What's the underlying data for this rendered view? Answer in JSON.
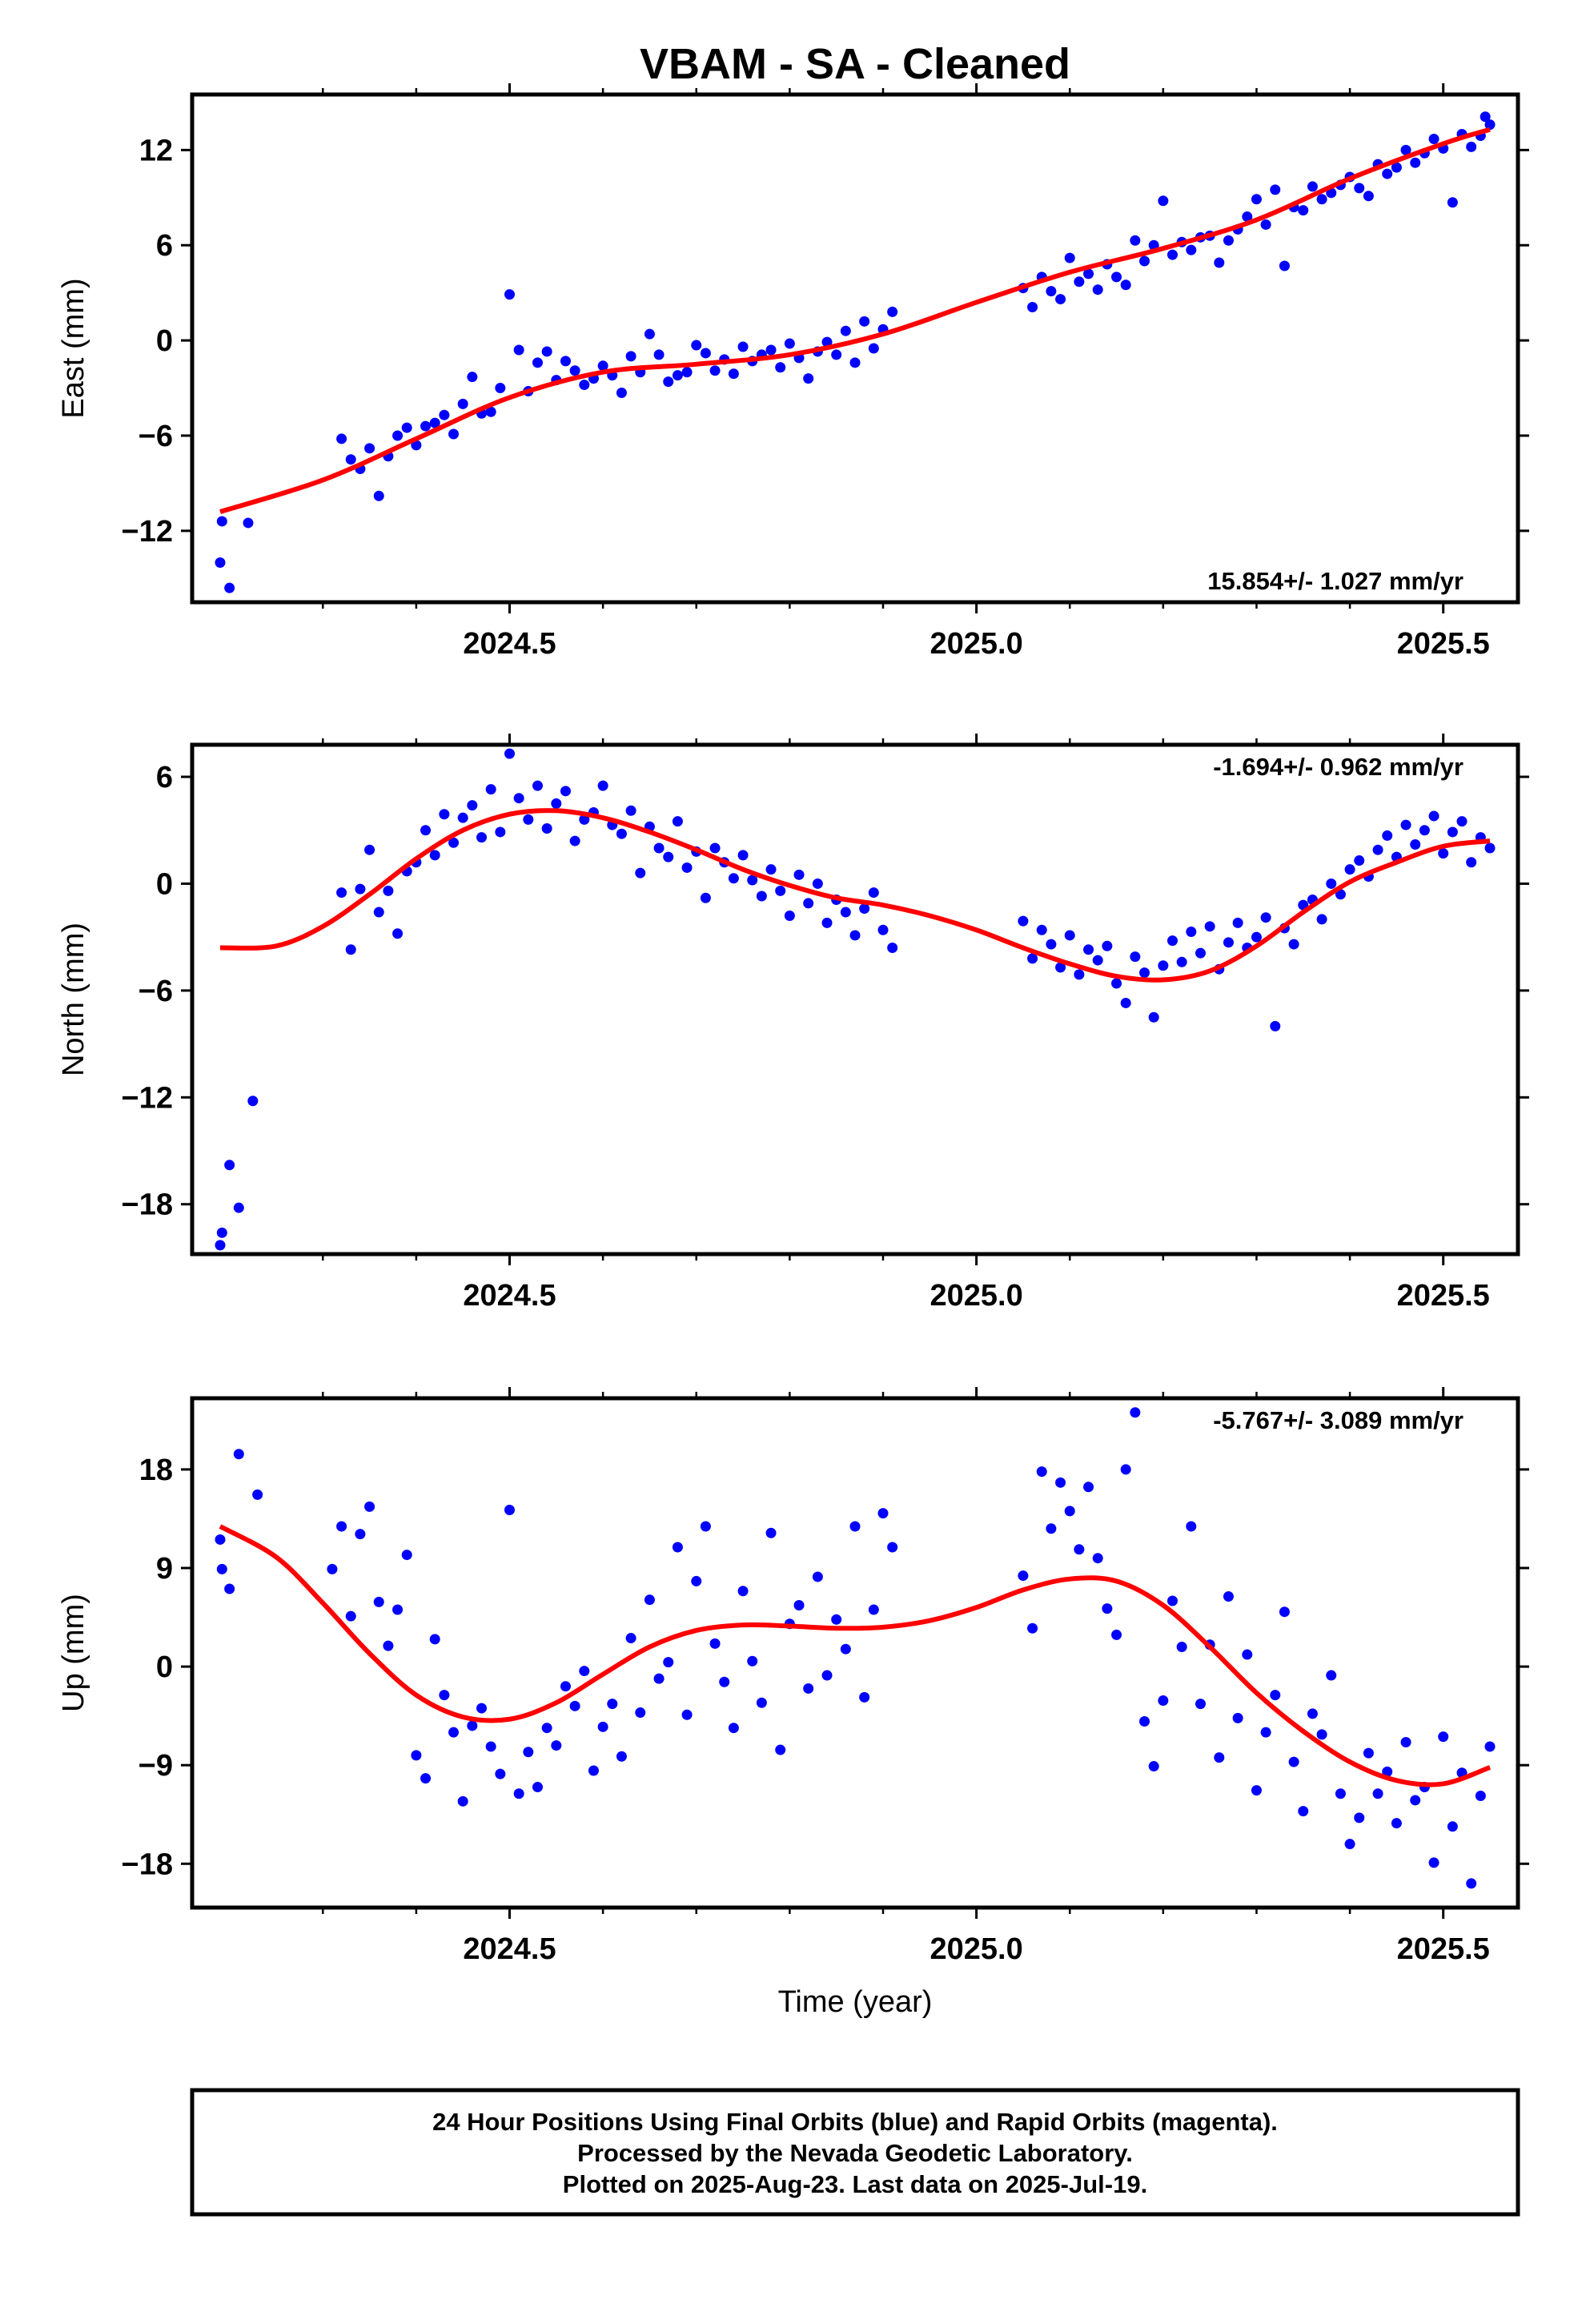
{
  "title": "VBAM  - SA - Cleaned",
  "x_axis_label": "Time (year)",
  "footer": {
    "line1": "24 Hour Positions Using Final Orbits (blue) and Rapid Orbits (magenta).",
    "line2": "Processed by the Nevada Geodetic Laboratory.",
    "line3": "Plotted on 2025-Aug-23. Last data on 2025-Jul-19."
  },
  "colors": {
    "data_points": "#0000ff",
    "model_fit": "#ff0000",
    "frame": "#000000"
  },
  "chart_data": [
    {
      "type": "scatter",
      "component": "east",
      "ylabel": "East (mm)",
      "rate_label": "15.854+/- 1.027 mm/yr",
      "rate_position": "bottom-right",
      "xlim": [
        2024.16,
        2025.58
      ],
      "ylim": [
        -16.5,
        15.5
      ],
      "xticks": [
        2024.5,
        2025.0,
        2025.5
      ],
      "xticklabels": [
        "2024.5",
        "2025.0",
        "2025.5"
      ],
      "yticks": [
        -12,
        -6,
        0,
        6,
        12
      ],
      "yticklabels": [
        "−12",
        "−6",
        "0",
        "6",
        "12"
      ],
      "grid": false,
      "fit_x": [
        2024.19,
        2024.3,
        2024.4,
        2024.5,
        2024.6,
        2024.7,
        2024.8,
        2024.9,
        2025.0,
        2025.1,
        2025.2,
        2025.3,
        2025.4,
        2025.5,
        2025.55
      ],
      "fit_y": [
        -10.8,
        -8.8,
        -6.2,
        -3.6,
        -2.0,
        -1.5,
        -0.9,
        0.4,
        2.4,
        4.3,
        5.8,
        7.6,
        10.2,
        12.4,
        13.3
      ],
      "points_x": [
        2024.19,
        2024.192,
        2024.2,
        2024.22,
        2024.32,
        2024.33,
        2024.34,
        2024.35,
        2024.36,
        2024.37,
        2024.38,
        2024.39,
        2024.4,
        2024.41,
        2024.42,
        2024.43,
        2024.44,
        2024.45,
        2024.46,
        2024.47,
        2024.48,
        2024.49,
        2024.5,
        2024.51,
        2024.52,
        2024.53,
        2024.54,
        2024.55,
        2024.56,
        2024.57,
        2024.58,
        2024.59,
        2024.6,
        2024.61,
        2024.62,
        2024.63,
        2024.64,
        2024.65,
        2024.66,
        2024.67,
        2024.68,
        2024.69,
        2024.7,
        2024.71,
        2024.72,
        2024.73,
        2024.74,
        2024.75,
        2024.76,
        2024.77,
        2024.78,
        2024.79,
        2024.8,
        2024.81,
        2024.82,
        2024.83,
        2024.84,
        2024.85,
        2024.86,
        2024.87,
        2024.88,
        2024.89,
        2024.9,
        2024.91,
        2025.05,
        2025.06,
        2025.07,
        2025.08,
        2025.09,
        2025.1,
        2025.11,
        2025.12,
        2025.13,
        2025.14,
        2025.15,
        2025.16,
        2025.17,
        2025.18,
        2025.19,
        2025.2,
        2025.21,
        2025.22,
        2025.23,
        2025.24,
        2025.25,
        2025.26,
        2025.27,
        2025.28,
        2025.29,
        2025.3,
        2025.31,
        2025.32,
        2025.33,
        2025.34,
        2025.35,
        2025.36,
        2025.37,
        2025.38,
        2025.39,
        2025.4,
        2025.41,
        2025.42,
        2025.43,
        2025.44,
        2025.45,
        2025.46,
        2025.47,
        2025.48,
        2025.49,
        2025.5,
        2025.51,
        2025.52,
        2025.53,
        2025.54,
        2025.545,
        2025.55
      ],
      "points_y": [
        -14.0,
        -11.4,
        -15.6,
        -11.5,
        -6.2,
        -7.5,
        -8.1,
        -6.8,
        -9.8,
        -7.3,
        -6.0,
        -5.5,
        -6.6,
        -5.4,
        -5.2,
        -4.7,
        -5.9,
        -4.0,
        -2.3,
        -4.6,
        -4.5,
        -3.0,
        2.9,
        -0.6,
        -3.2,
        -1.4,
        -0.7,
        -2.5,
        -1.3,
        -1.9,
        -2.8,
        -2.4,
        -1.6,
        -2.2,
        -3.3,
        -1.0,
        -2.0,
        0.4,
        -0.9,
        -2.6,
        -2.2,
        -2.0,
        -0.3,
        -0.8,
        -1.9,
        -1.2,
        -2.1,
        -0.4,
        -1.3,
        -0.9,
        -0.6,
        -1.7,
        -0.2,
        -1.1,
        -2.4,
        -0.7,
        -0.1,
        -0.9,
        0.6,
        -1.4,
        1.2,
        -0.5,
        0.7,
        1.8,
        3.3,
        2.1,
        4.0,
        3.1,
        2.6,
        5.2,
        3.7,
        4.2,
        3.2,
        4.8,
        4.0,
        3.5,
        6.3,
        5.0,
        6.0,
        8.8,
        5.4,
        6.2,
        5.7,
        6.5,
        6.6,
        4.9,
        6.3,
        7.0,
        7.8,
        8.9,
        7.3,
        9.5,
        4.7,
        8.4,
        8.2,
        9.7,
        8.9,
        9.3,
        9.8,
        10.3,
        9.6,
        9.1,
        11.1,
        10.5,
        10.9,
        12.0,
        11.2,
        11.8,
        12.7,
        12.1,
        8.7,
        13.0,
        12.2,
        12.9,
        14.1,
        13.6
      ]
    },
    {
      "type": "scatter",
      "component": "north",
      "ylabel": "North (mm)",
      "rate_label": "-1.694+/- 0.962 mm/yr",
      "rate_position": "top-right",
      "xlim": [
        2024.16,
        2025.58
      ],
      "ylim": [
        -20.8,
        7.8
      ],
      "xticks": [
        2024.5,
        2025.0,
        2025.5
      ],
      "xticklabels": [
        "2024.5",
        "2025.0",
        "2025.5"
      ],
      "yticks": [
        -18,
        -12,
        -6,
        0,
        6
      ],
      "yticklabels": [
        "−18",
        "−12",
        "−6",
        "0",
        "6"
      ],
      "grid": false,
      "fit_x": [
        2024.19,
        2024.25,
        2024.3,
        2024.35,
        2024.4,
        2024.45,
        2024.5,
        2024.55,
        2024.6,
        2024.65,
        2024.7,
        2024.75,
        2024.8,
        2024.85,
        2024.9,
        2024.95,
        2025.0,
        2025.05,
        2025.1,
        2025.15,
        2025.2,
        2025.25,
        2025.3,
        2025.35,
        2025.4,
        2025.45,
        2025.5,
        2025.55
      ],
      "fit_y": [
        -3.6,
        -3.5,
        -2.4,
        -0.6,
        1.4,
        3.0,
        3.9,
        4.1,
        3.7,
        2.9,
        1.9,
        0.8,
        -0.1,
        -0.8,
        -1.2,
        -1.8,
        -2.6,
        -3.6,
        -4.5,
        -5.2,
        -5.4,
        -4.9,
        -3.5,
        -1.6,
        0.1,
        1.2,
        2.1,
        2.4
      ],
      "points_x": [
        2024.19,
        2024.192,
        2024.2,
        2024.21,
        2024.225,
        2024.32,
        2024.33,
        2024.34,
        2024.35,
        2024.36,
        2024.37,
        2024.38,
        2024.39,
        2024.4,
        2024.41,
        2024.42,
        2024.43,
        2024.44,
        2024.45,
        2024.46,
        2024.47,
        2024.48,
        2024.49,
        2024.5,
        2024.51,
        2024.52,
        2024.53,
        2024.54,
        2024.55,
        2024.56,
        2024.57,
        2024.58,
        2024.59,
        2024.6,
        2024.61,
        2024.62,
        2024.63,
        2024.64,
        2024.65,
        2024.66,
        2024.67,
        2024.68,
        2024.69,
        2024.7,
        2024.71,
        2024.72,
        2024.73,
        2024.74,
        2024.75,
        2024.76,
        2024.77,
        2024.78,
        2024.79,
        2024.8,
        2024.81,
        2024.82,
        2024.83,
        2024.84,
        2024.85,
        2024.86,
        2024.87,
        2024.88,
        2024.89,
        2024.9,
        2024.91,
        2025.05,
        2025.06,
        2025.07,
        2025.08,
        2025.09,
        2025.1,
        2025.11,
        2025.12,
        2025.13,
        2025.14,
        2025.15,
        2025.16,
        2025.17,
        2025.18,
        2025.19,
        2025.2,
        2025.21,
        2025.22,
        2025.23,
        2025.24,
        2025.25,
        2025.26,
        2025.27,
        2025.28,
        2025.29,
        2025.3,
        2025.31,
        2025.32,
        2025.33,
        2025.34,
        2025.35,
        2025.36,
        2025.37,
        2025.38,
        2025.39,
        2025.4,
        2025.41,
        2025.42,
        2025.43,
        2025.44,
        2025.45,
        2025.46,
        2025.47,
        2025.48,
        2025.49,
        2025.5,
        2025.51,
        2025.52,
        2025.53,
        2025.54,
        2025.55
      ],
      "points_y": [
        -20.3,
        -19.6,
        -15.8,
        -18.2,
        -12.2,
        -0.5,
        -3.7,
        -0.3,
        1.9,
        -1.6,
        -0.4,
        -2.8,
        0.7,
        1.2,
        3.0,
        1.6,
        3.9,
        2.3,
        3.7,
        4.4,
        2.6,
        5.3,
        2.9,
        7.3,
        4.8,
        3.6,
        5.5,
        3.1,
        4.5,
        5.2,
        2.4,
        3.6,
        4.0,
        5.5,
        3.3,
        2.8,
        4.1,
        0.6,
        3.2,
        2.0,
        1.5,
        3.5,
        0.9,
        1.8,
        -0.8,
        2.0,
        1.2,
        0.3,
        1.6,
        0.2,
        -0.7,
        0.8,
        -0.4,
        -1.8,
        0.5,
        -1.1,
        0.0,
        -2.2,
        -0.9,
        -1.6,
        -2.9,
        -1.4,
        -0.5,
        -2.6,
        -3.6,
        -2.1,
        -4.2,
        -2.6,
        -3.4,
        -4.7,
        -2.9,
        -5.1,
        -3.7,
        -4.3,
        -3.5,
        -5.6,
        -6.7,
        -4.1,
        -5.0,
        -7.5,
        -4.6,
        -3.2,
        -4.4,
        -2.7,
        -3.9,
        -2.4,
        -4.8,
        -3.3,
        -2.2,
        -3.6,
        -3.0,
        -1.9,
        -8.0,
        -2.5,
        -3.4,
        -1.2,
        -0.9,
        -2.0,
        0.0,
        -0.6,
        0.8,
        1.3,
        0.4,
        1.9,
        2.7,
        1.5,
        3.3,
        2.2,
        3.0,
        3.8,
        1.7,
        2.9,
        3.5,
        1.2,
        2.6,
        2.0
      ]
    },
    {
      "type": "scatter",
      "component": "up",
      "ylabel": "Up (mm)",
      "rate_label": "-5.767+/- 3.089 mm/yr",
      "rate_position": "top-right",
      "xlim": [
        2024.16,
        2025.58
      ],
      "ylim": [
        -22,
        24.5
      ],
      "xticks": [
        2024.5,
        2025.0,
        2025.5
      ],
      "xticklabels": [
        "2024.5",
        "2025.0",
        "2025.5"
      ],
      "yticks": [
        -18,
        -9,
        0,
        9,
        18
      ],
      "yticklabels": [
        "−18",
        "−9",
        "0",
        "9",
        "18"
      ],
      "grid": false,
      "fit_x": [
        2024.19,
        2024.25,
        2024.3,
        2024.35,
        2024.4,
        2024.45,
        2024.5,
        2024.55,
        2024.6,
        2024.65,
        2024.7,
        2024.75,
        2024.8,
        2024.85,
        2024.9,
        2024.95,
        2025.0,
        2025.05,
        2025.1,
        2025.15,
        2025.2,
        2025.25,
        2025.3,
        2025.35,
        2025.4,
        2025.45,
        2025.5,
        2025.55
      ],
      "fit_y": [
        12.8,
        10.0,
        5.8,
        1.2,
        -2.6,
        -4.6,
        -4.8,
        -3.3,
        -0.7,
        1.8,
        3.3,
        3.8,
        3.7,
        3.5,
        3.6,
        4.2,
        5.4,
        7.0,
        8.0,
        7.8,
        5.6,
        1.8,
        -2.4,
        -5.9,
        -8.7,
        -10.4,
        -10.7,
        -9.2
      ],
      "points_x": [
        2024.19,
        2024.192,
        2024.2,
        2024.21,
        2024.23,
        2024.31,
        2024.32,
        2024.33,
        2024.34,
        2024.35,
        2024.36,
        2024.37,
        2024.38,
        2024.39,
        2024.4,
        2024.41,
        2024.42,
        2024.43,
        2024.44,
        2024.45,
        2024.46,
        2024.47,
        2024.48,
        2024.49,
        2024.5,
        2024.51,
        2024.52,
        2024.53,
        2024.54,
        2024.55,
        2024.56,
        2024.57,
        2024.58,
        2024.59,
        2024.6,
        2024.61,
        2024.62,
        2024.63,
        2024.64,
        2024.65,
        2024.66,
        2024.67,
        2024.68,
        2024.69,
        2024.7,
        2024.71,
        2024.72,
        2024.73,
        2024.74,
        2024.75,
        2024.76,
        2024.77,
        2024.78,
        2024.79,
        2024.8,
        2024.81,
        2024.82,
        2024.83,
        2024.84,
        2024.85,
        2024.86,
        2024.87,
        2024.88,
        2024.89,
        2024.9,
        2024.91,
        2025.05,
        2025.06,
        2025.07,
        2025.08,
        2025.09,
        2025.1,
        2025.11,
        2025.12,
        2025.13,
        2025.14,
        2025.15,
        2025.16,
        2025.17,
        2025.18,
        2025.19,
        2025.2,
        2025.21,
        2025.22,
        2025.23,
        2025.24,
        2025.25,
        2025.26,
        2025.27,
        2025.28,
        2025.29,
        2025.3,
        2025.31,
        2025.32,
        2025.33,
        2025.34,
        2025.35,
        2025.36,
        2025.37,
        2025.38,
        2025.39,
        2025.4,
        2025.41,
        2025.42,
        2025.43,
        2025.44,
        2025.45,
        2025.46,
        2025.47,
        2025.48,
        2025.49,
        2025.5,
        2025.51,
        2025.52,
        2025.53,
        2025.54,
        2025.55
      ],
      "points_y": [
        11.6,
        8.9,
        7.1,
        19.4,
        15.7,
        8.9,
        12.8,
        4.6,
        12.1,
        14.6,
        5.9,
        1.9,
        5.2,
        10.2,
        -8.1,
        -10.2,
        2.5,
        -2.6,
        -6.0,
        -12.3,
        -5.4,
        -3.8,
        -7.3,
        -9.8,
        14.3,
        -11.6,
        -7.8,
        -11.0,
        -5.6,
        -7.2,
        -1.8,
        -3.6,
        -0.4,
        -9.5,
        -5.5,
        -3.4,
        -8.2,
        2.6,
        -4.2,
        6.1,
        -1.1,
        0.4,
        10.9,
        -4.4,
        7.8,
        12.8,
        2.1,
        -1.4,
        -5.6,
        6.9,
        0.5,
        -3.3,
        12.2,
        -7.6,
        3.9,
        5.6,
        -2.0,
        8.2,
        -0.8,
        4.3,
        1.6,
        12.8,
        -2.8,
        5.2,
        14.0,
        10.9,
        8.3,
        3.5,
        17.8,
        12.6,
        16.8,
        14.2,
        10.7,
        16.4,
        9.9,
        5.3,
        2.9,
        18.0,
        23.2,
        -5.0,
        -9.1,
        -3.1,
        6.0,
        1.8,
        12.8,
        -3.4,
        2.0,
        -8.3,
        6.4,
        -4.7,
        1.1,
        -11.3,
        -6.0,
        -2.6,
        5.0,
        -8.7,
        -13.2,
        -4.3,
        -6.2,
        -0.8,
        -11.6,
        -16.2,
        -13.8,
        -7.9,
        -11.6,
        -9.6,
        -14.3,
        -6.9,
        -12.2,
        -11.0,
        -17.9,
        -6.4,
        -14.6,
        -9.7,
        -19.8,
        -11.8,
        -7.3
      ]
    }
  ]
}
